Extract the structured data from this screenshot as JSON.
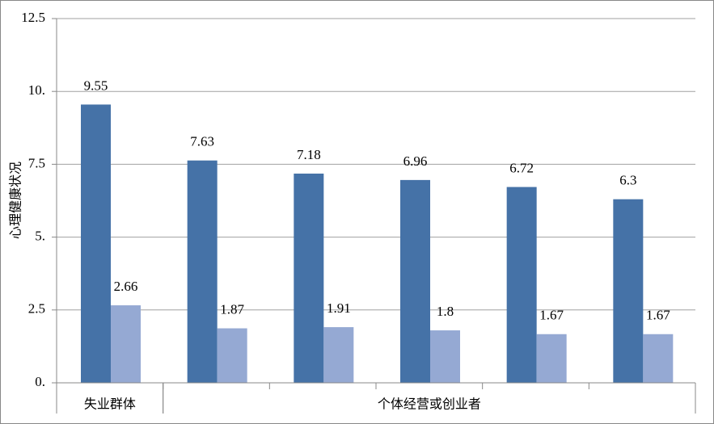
{
  "chart_data": {
    "type": "bar",
    "y_label": "心理健康状况",
    "category_groups": [
      {
        "label": "失业群体",
        "count": 1
      },
      {
        "label": "个体经营或创业者",
        "count": 5
      }
    ],
    "series": [
      {
        "color": "#4572a7",
        "values": [
          9.55,
          7.63,
          7.18,
          6.96,
          6.72,
          6.3
        ]
      },
      {
        "color": "#95a9d3",
        "values": [
          2.66,
          1.87,
          1.91,
          1.8,
          1.67,
          1.67
        ]
      }
    ],
    "ylim": [
      0,
      12.5
    ],
    "yticks": [
      {
        "value": 0,
        "label": "0."
      },
      {
        "value": 2.5,
        "label": "2.5"
      },
      {
        "value": 5,
        "label": "5."
      },
      {
        "value": 7.5,
        "label": "7.5"
      },
      {
        "value": 10,
        "label": "10."
      },
      {
        "value": 12.5,
        "label": "12.5"
      }
    ],
    "grid": true
  }
}
